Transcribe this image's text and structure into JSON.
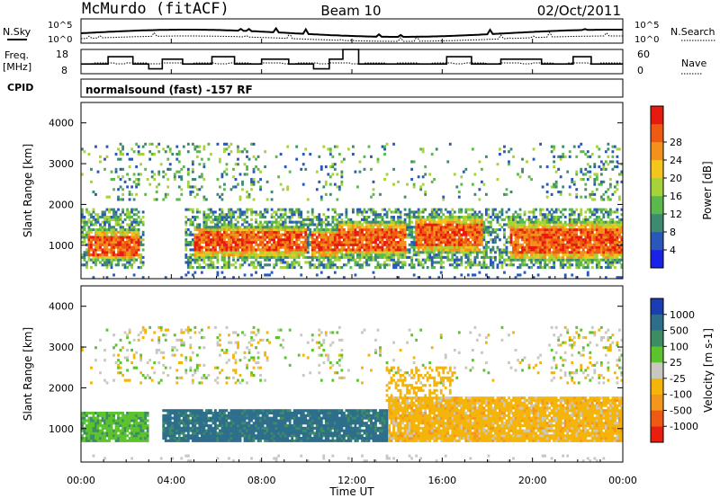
{
  "header": {
    "station": "McMurdo (fitACF)",
    "beam": "Beam 10",
    "date": "02/Oct/2011"
  },
  "strip_panels": {
    "nsky_label": "N.Sky",
    "nsearch_label": "N.Search",
    "noise_tick_top": "10^5",
    "noise_tick_bottom": "10^0",
    "freq_label": "Freq.",
    "freq_unit": "[MHz]",
    "freq_ticks": [
      "18",
      "8"
    ],
    "nave_label": "Nave",
    "nave_ticks": [
      "60",
      "0"
    ],
    "cpid_label": "CPID",
    "cpid_text": "normalsound (fast) -157 RF"
  },
  "chart_data": [
    {
      "type": "heatmap",
      "title": "",
      "parameter": "Power",
      "ylabel": "Slant Range [km]",
      "ylim": [
        180,
        4500
      ],
      "yticks": [
        1000,
        2000,
        3000,
        4000
      ],
      "xlim_hours": [
        0,
        24
      ],
      "colorbar_label": "Power [dB]",
      "colorbar_ticks": [
        4,
        8,
        12,
        16,
        20,
        24,
        28
      ],
      "colorbar_colors": [
        "#1a22e6",
        "#2a58b8",
        "#3d8a70",
        "#5bb84a",
        "#a6d23a",
        "#f5c51e",
        "#f2911c",
        "#ee5a14",
        "#e61a0e"
      ],
      "description_regions": [
        {
          "x": [
            0.3,
            2.6
          ],
          "y": [
            600,
            1400
          ],
          "level": "high"
        },
        {
          "x": [
            5.0,
            10.0
          ],
          "y": [
            700,
            1500
          ],
          "level": "high"
        },
        {
          "x": [
            10.2,
            11.4
          ],
          "y": [
            700,
            1400
          ],
          "level": "high"
        },
        {
          "x": [
            11.4,
            14.4
          ],
          "y": [
            700,
            1600
          ],
          "level": "high"
        },
        {
          "x": [
            14.8,
            17.8
          ],
          "y": [
            800,
            1700
          ],
          "level": "high"
        },
        {
          "x": [
            19.0,
            24.0
          ],
          "y": [
            600,
            1600
          ],
          "level": "high"
        }
      ]
    },
    {
      "type": "heatmap",
      "title": "",
      "parameter": "Velocity",
      "ylabel": "Slant Range [km]",
      "ylim": [
        180,
        4500
      ],
      "yticks": [
        1000,
        2000,
        3000,
        4000
      ],
      "xlim_hours": [
        0,
        24
      ],
      "xticks": [
        "00:00",
        "04:00",
        "08:00",
        "12:00",
        "16:00",
        "20:00",
        "00:00"
      ],
      "xlabel": "Time UT",
      "colorbar_label": "Velocity [m s-1]",
      "colorbar_ticks": [
        "1000",
        "500",
        "100",
        "25",
        "-25",
        "-100",
        "-500",
        "-1000"
      ],
      "colorbar_colors": [
        "#1a3db4",
        "#2d6e8c",
        "#3d8c64",
        "#5cc22e",
        "#c8c8c0",
        "#f5b40a",
        "#f2961e",
        "#ee5a14",
        "#e81e0e"
      ],
      "description_regions": [
        {
          "x": [
            0.0,
            3.0
          ],
          "y": [
            700,
            1400
          ],
          "dominant": "25 to 100"
        },
        {
          "x": [
            3.6,
            13.6
          ],
          "y": [
            700,
            1500
          ],
          "dominant": "100 to 500"
        },
        {
          "x": [
            13.6,
            24.0
          ],
          "y": [
            700,
            1800
          ],
          "dominant": "-100 to -500"
        }
      ]
    }
  ],
  "colors": {
    "frame": "#000000",
    "background": "#ffffff"
  }
}
